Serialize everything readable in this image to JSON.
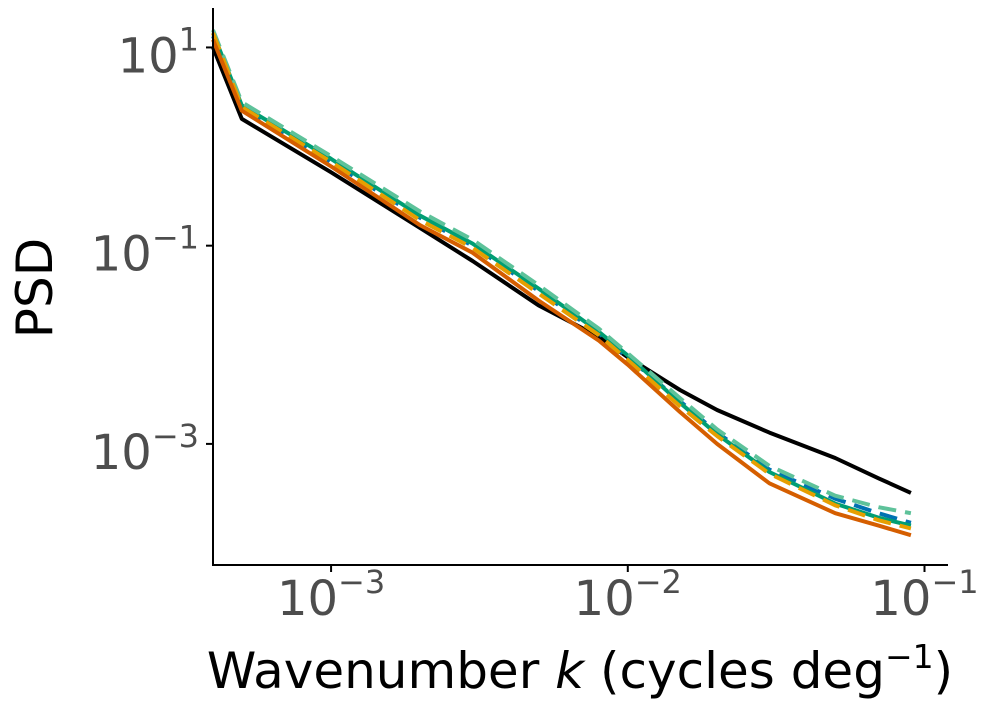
{
  "chart_data": {
    "type": "line",
    "xscale": "log",
    "yscale": "log",
    "xlim": [
      0.0004,
      0.12
    ],
    "ylim": [
      6e-05,
      25
    ],
    "xlabel": {
      "pre": "Wavenumber ",
      "var": "k",
      "mid": " (cycles deg",
      "sup": "−1",
      "post": ")"
    },
    "ylabel": "PSD",
    "xticks": [
      {
        "value": 0.001,
        "base": "10",
        "exp": "−3"
      },
      {
        "value": 0.01,
        "base": "10",
        "exp": "−2"
      },
      {
        "value": 0.1,
        "base": "10",
        "exp": "−1"
      }
    ],
    "yticks": [
      {
        "value": 10,
        "base": "10",
        "exp": "1"
      },
      {
        "value": 0.1,
        "base": "10",
        "exp": "−1"
      },
      {
        "value": 0.001,
        "base": "10",
        "exp": "−3"
      }
    ],
    "grid": false,
    "legend": "none",
    "series": [
      {
        "name": "black",
        "color": "#000000",
        "style": "solid",
        "x": [
          0.0004,
          0.0005,
          0.001,
          0.002,
          0.003,
          0.005,
          0.008,
          0.01,
          0.015,
          0.02,
          0.03,
          0.05,
          0.07,
          0.09
        ],
        "y": [
          10,
          1.9,
          0.55,
          0.15,
          0.07,
          0.025,
          0.012,
          0.0075,
          0.0035,
          0.0022,
          0.0013,
          0.00072,
          0.00045,
          0.00032
        ]
      },
      {
        "name": "blue",
        "color": "#0072b2",
        "style": "dash",
        "x": [
          0.0004,
          0.0005,
          0.001,
          0.002,
          0.003,
          0.005,
          0.008,
          0.01,
          0.015,
          0.02,
          0.03,
          0.05,
          0.07,
          0.09
        ],
        "y": [
          13,
          2.5,
          0.7,
          0.19,
          0.1,
          0.035,
          0.013,
          0.0075,
          0.0027,
          0.0013,
          0.00055,
          0.00028,
          0.0002,
          0.00016
        ]
      },
      {
        "name": "teal",
        "color": "#009e73",
        "style": "solid",
        "x": [
          0.0004,
          0.0005,
          0.001,
          0.002,
          0.003,
          0.005,
          0.008,
          0.01,
          0.015,
          0.02,
          0.03,
          0.05,
          0.07,
          0.09
        ],
        "y": [
          14,
          2.6,
          0.75,
          0.2,
          0.105,
          0.037,
          0.0135,
          0.0078,
          0.0026,
          0.00125,
          0.00052,
          0.00025,
          0.00018,
          0.00015
        ]
      },
      {
        "name": "light-green",
        "color": "#5ec29a",
        "style": "dash",
        "x": [
          0.0004,
          0.0005,
          0.001,
          0.002,
          0.003,
          0.005,
          0.008,
          0.01,
          0.015,
          0.02,
          0.03,
          0.05,
          0.07,
          0.09
        ],
        "y": [
          15,
          2.8,
          0.8,
          0.22,
          0.115,
          0.04,
          0.0145,
          0.0082,
          0.0029,
          0.0014,
          0.0006,
          0.0003,
          0.00023,
          0.0002
        ]
      },
      {
        "name": "yellow",
        "color": "#e69f00",
        "style": "dash",
        "x": [
          0.0004,
          0.0005,
          0.001,
          0.002,
          0.003,
          0.005,
          0.008,
          0.01,
          0.015,
          0.02,
          0.03,
          0.05,
          0.07,
          0.09
        ],
        "y": [
          14,
          2.5,
          0.7,
          0.18,
          0.095,
          0.033,
          0.0125,
          0.007,
          0.0024,
          0.0012,
          0.0005,
          0.00024,
          0.00017,
          0.00014
        ]
      },
      {
        "name": "orange",
        "color": "#d55e00",
        "style": "solid",
        "x": [
          0.0004,
          0.0005,
          0.001,
          0.002,
          0.003,
          0.005,
          0.008,
          0.01,
          0.015,
          0.02,
          0.03,
          0.05,
          0.07,
          0.09
        ],
        "y": [
          12,
          2.3,
          0.63,
          0.16,
          0.085,
          0.028,
          0.011,
          0.0063,
          0.0021,
          0.001,
          0.0004,
          0.0002,
          0.00015,
          0.00012
        ]
      }
    ]
  }
}
